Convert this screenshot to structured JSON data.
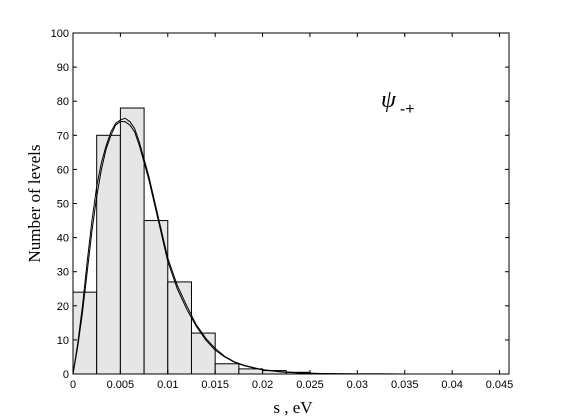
{
  "chart_data": {
    "type": "bar",
    "xlabel": "s ,  eV",
    "ylabel": "Number of levels",
    "xlim": [
      0,
      0.046
    ],
    "ylim": [
      0,
      100
    ],
    "xticks": [
      "0",
      "0.005",
      "0.01",
      "0.015",
      "0.02",
      "0.025",
      "0.03",
      "0.035",
      "0.04",
      "0.045"
    ],
    "xtick_values": [
      0,
      0.005,
      0.01,
      0.015,
      0.02,
      0.025,
      0.03,
      0.035,
      0.04,
      0.045
    ],
    "yticks": [
      "0",
      "10",
      "20",
      "30",
      "40",
      "50",
      "60",
      "70",
      "80",
      "90",
      "100"
    ],
    "ytick_values": [
      0,
      10,
      20,
      30,
      40,
      50,
      60,
      70,
      80,
      90,
      100
    ],
    "bin_width": 0.0025,
    "bins": [
      {
        "x0": 0.0,
        "value": 24
      },
      {
        "x0": 0.0025,
        "value": 70
      },
      {
        "x0": 0.005,
        "value": 78
      },
      {
        "x0": 0.0075,
        "value": 45
      },
      {
        "x0": 0.01,
        "value": 27
      },
      {
        "x0": 0.0125,
        "value": 12
      },
      {
        "x0": 0.015,
        "value": 3
      },
      {
        "x0": 0.0175,
        "value": 1.5
      },
      {
        "x0": 0.02,
        "value": 1
      },
      {
        "x0": 0.0225,
        "value": 0.5
      }
    ],
    "curves": [
      {
        "x": [
          0,
          0.0005,
          0.001,
          0.0015,
          0.002,
          0.0025,
          0.003,
          0.0035,
          0.004,
          0.0045,
          0.005,
          0.0055,
          0.006,
          0.0065,
          0.007,
          0.0075,
          0.008,
          0.0085,
          0.009,
          0.0095,
          0.01,
          0.011,
          0.012,
          0.013,
          0.014,
          0.015,
          0.016,
          0.017,
          0.018,
          0.019,
          0.02,
          0.022,
          0.024,
          0.026,
          0.028,
          0.03,
          0.035,
          0.04,
          0.0455
        ],
        "y": [
          0,
          8,
          18,
          30,
          42,
          52,
          60,
          66,
          70,
          73,
          74,
          74,
          73,
          71,
          67,
          62,
          57,
          51,
          45,
          39,
          33,
          25,
          19,
          14,
          10,
          7,
          5,
          3.5,
          2.5,
          1.8,
          1.2,
          0.6,
          0.3,
          0.15,
          0.08,
          0.04,
          0.01,
          0,
          0
        ]
      },
      {
        "x": [
          0,
          0.0005,
          0.001,
          0.0015,
          0.002,
          0.0025,
          0.003,
          0.0035,
          0.004,
          0.0045,
          0.005,
          0.0055,
          0.006,
          0.0065,
          0.007,
          0.0075,
          0.008,
          0.0085,
          0.009,
          0.0095,
          0.01,
          0.011,
          0.012,
          0.013,
          0.014,
          0.015,
          0.016,
          0.017,
          0.018,
          0.019,
          0.02,
          0.022,
          0.024,
          0.026,
          0.028,
          0.03,
          0.035,
          0.04,
          0.0455
        ],
        "y": [
          0,
          9,
          20,
          33,
          45,
          55,
          62,
          67,
          71,
          73.5,
          74.5,
          75,
          74,
          72,
          68,
          63,
          58,
          52,
          46,
          40,
          34,
          26,
          20,
          14.5,
          10.5,
          7.5,
          5.2,
          3.6,
          2.6,
          1.9,
          1.3,
          0.65,
          0.32,
          0.16,
          0.08,
          0.04,
          0.01,
          0,
          0
        ]
      }
    ],
    "annotation": {
      "symbol": "ψ",
      "subscript": "-+"
    },
    "grid": false
  }
}
